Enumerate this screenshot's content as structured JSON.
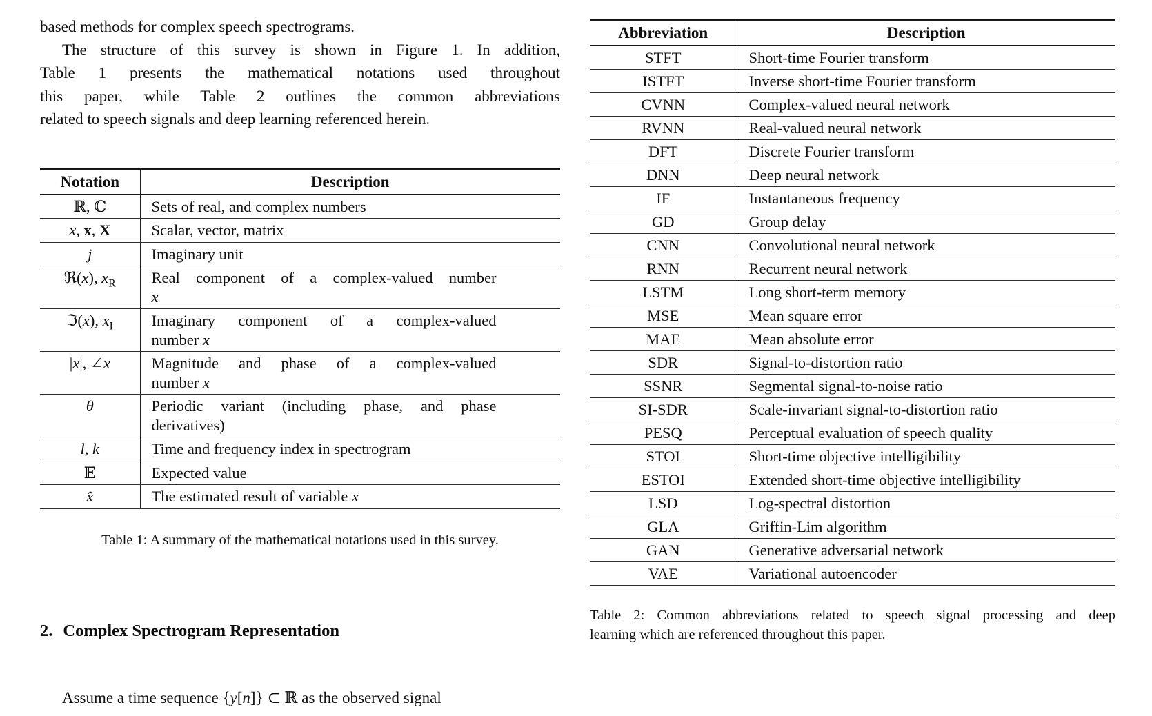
{
  "colors": {
    "background": "#ffffff",
    "text": "#111111",
    "rule": "#1c1c1c"
  },
  "left_column": {
    "paragraph_tail": "based methods for complex speech spectrograms.",
    "intro_lines": [
      "The structure of this survey is shown in Figure 1. In addition,",
      "Table 1 presents the mathematical notations used throughout",
      "this paper, while Table 2 outlines the common abbreviations",
      "related to speech signals and deep learning referenced herein."
    ],
    "section_heading": {
      "number": "2.",
      "title": "Complex Spectrogram Representation"
    },
    "body_start_html": "Assume a time sequence {<i>y</i>[<i>n</i>]} ⊂ ℝ as the observed signal"
  },
  "table1": {
    "col_headers": [
      "Notation",
      "Description"
    ],
    "rows": [
      {
        "notation_html": "ℝ, ℂ",
        "desc_lines": [
          "Sets of real, and complex numbers"
        ]
      },
      {
        "notation_html": "<i>x</i>, <b>x</b>, <b>X</b>",
        "desc_lines": [
          "Scalar, vector, matrix"
        ]
      },
      {
        "notation_html": "<i>j</i>",
        "desc_lines": [
          "Imaginary unit"
        ]
      },
      {
        "notation_html": "ℜ(<i>x</i>), <i>x</i><sub>R</sub>",
        "desc_lines": [
          "Real component of a complex-valued number",
          "<i>x</i>"
        ]
      },
      {
        "notation_html": "ℑ(<i>x</i>), <i>x</i><sub>I</sub>",
        "desc_lines": [
          "Imaginary component of a complex-valued",
          "number <i>x</i>"
        ]
      },
      {
        "notation_html": "|<i>x</i>|, ∠<i>x</i>",
        "desc_lines": [
          "Magnitude and phase of a complex-valued",
          "number <i>x</i>"
        ]
      },
      {
        "notation_html": "<i>θ</i>",
        "desc_lines": [
          "Periodic variant (including phase, and phase",
          "derivatives)"
        ]
      },
      {
        "notation_html": "<i>l</i>, <i>k</i>",
        "desc_lines": [
          "Time and frequency index in spectrogram"
        ]
      },
      {
        "notation_html": "𝔼",
        "desc_lines": [
          "Expected value"
        ]
      },
      {
        "notation_html": "<i>x̂</i>",
        "desc_lines": [
          "The estimated result of variable <i>x</i>"
        ]
      }
    ],
    "caption": "Table 1: A summary of the mathematical notations used in this survey."
  },
  "table2": {
    "col_headers": [
      "Abbreviation",
      "Description"
    ],
    "rows": [
      {
        "abbr": "STFT",
        "desc": "Short-time Fourier transform"
      },
      {
        "abbr": "ISTFT",
        "desc": "Inverse short-time Fourier transform"
      },
      {
        "abbr": "CVNN",
        "desc": "Complex-valued neural network"
      },
      {
        "abbr": "RVNN",
        "desc": "Real-valued neural network"
      },
      {
        "abbr": "DFT",
        "desc": "Discrete Fourier transform"
      },
      {
        "abbr": "DNN",
        "desc": "Deep neural network"
      },
      {
        "abbr": "IF",
        "desc": "Instantaneous frequency"
      },
      {
        "abbr": "GD",
        "desc": "Group delay"
      },
      {
        "abbr": "CNN",
        "desc": "Convolutional neural network"
      },
      {
        "abbr": "RNN",
        "desc": "Recurrent neural network"
      },
      {
        "abbr": "LSTM",
        "desc": "Long short-term memory"
      },
      {
        "abbr": "MSE",
        "desc": "Mean square error"
      },
      {
        "abbr": "MAE",
        "desc": "Mean absolute error"
      },
      {
        "abbr": "SDR",
        "desc": "Signal-to-distortion ratio"
      },
      {
        "abbr": "SSNR",
        "desc": "Segmental signal-to-noise ratio"
      },
      {
        "abbr": "SI-SDR",
        "desc": "Scale-invariant signal-to-distortion ratio"
      },
      {
        "abbr": "PESQ",
        "desc": "Perceptual evaluation of speech quality"
      },
      {
        "abbr": "STOI",
        "desc": "Short-time objective intelligibility"
      },
      {
        "abbr": "ESTOI",
        "desc": "Extended short-time objective intelligibility"
      },
      {
        "abbr": "LSD",
        "desc": "Log-spectral distortion"
      },
      {
        "abbr": "GLA",
        "desc": "Griffin-Lim algorithm"
      },
      {
        "abbr": "GAN",
        "desc": "Generative adversarial network"
      },
      {
        "abbr": "VAE",
        "desc": "Variational autoencoder"
      }
    ],
    "caption_lines": [
      "Table 2: Common abbreviations related to speech signal processing and deep",
      "learning which are referenced throughout this paper."
    ]
  }
}
